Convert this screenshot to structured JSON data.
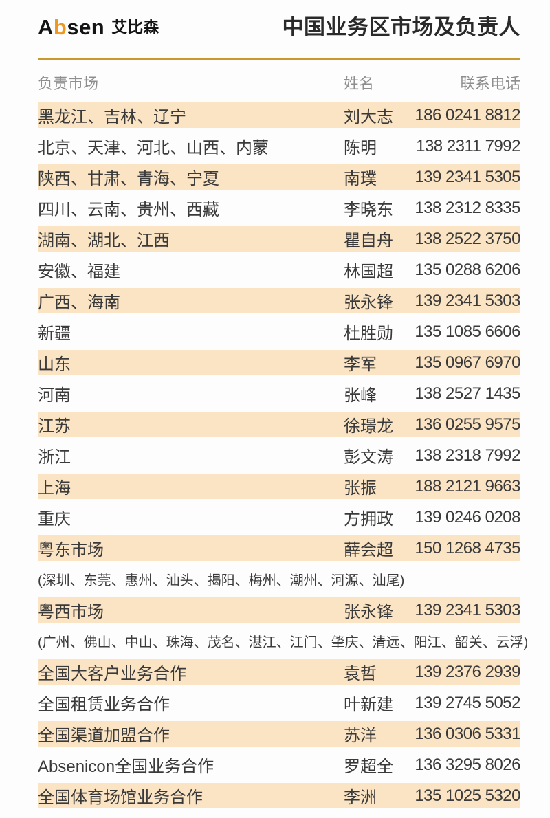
{
  "header": {
    "logo_en_a": "A",
    "logo_en_b": "b",
    "logo_en_rest": "sen",
    "logo_cn": "艾比森",
    "title": "中国业务区市场及负责人"
  },
  "columns": {
    "market": "负责市场",
    "name": "姓名",
    "phone": "联系电话"
  },
  "colors": {
    "accent": "#c9992f",
    "row_highlight": "#fae4c4",
    "logo_orange": "#ee9822",
    "text_dark": "#3a3a3a",
    "header_gray": "#8e8e8e"
  },
  "rows": [
    {
      "market": "黑龙江、吉林、辽宁",
      "name": "刘大志",
      "phone": "186 0241 8812",
      "highlight": true
    },
    {
      "market": "北京、天津、河北、山西、内蒙",
      "name": "陈明",
      "phone": "138 2311 7992",
      "highlight": false
    },
    {
      "market": "陕西、甘肃、青海、宁夏",
      "name": "南璞",
      "phone": "139 2341 5305",
      "highlight": true
    },
    {
      "market": "四川、云南、贵州、西藏",
      "name": "李晓东",
      "phone": "138 2312 8335",
      "highlight": false
    },
    {
      "market": "湖南、湖北、江西",
      "name": "瞿自舟",
      "phone": "138 2522 3750",
      "highlight": true
    },
    {
      "market": "安徽、福建",
      "name": "林国超",
      "phone": "135 0288 6206",
      "highlight": false
    },
    {
      "market": "广西、海南",
      "name": "张永锋",
      "phone": "139 2341 5303",
      "highlight": true
    },
    {
      "market": "新疆",
      "name": "杜胜勋",
      "phone": "135 1085 6606",
      "highlight": false
    },
    {
      "market": "山东",
      "name": "李军",
      "phone": "135 0967 6970",
      "highlight": true
    },
    {
      "market": "河南",
      "name": "张峰",
      "phone": "138 2527 1435",
      "highlight": false
    },
    {
      "market": "江苏",
      "name": "徐璟龙",
      "phone": "136 0255 9575",
      "highlight": true
    },
    {
      "market": "浙江",
      "name": "彭文涛",
      "phone": "138 2318 7992",
      "highlight": false
    },
    {
      "market": "上海",
      "name": "张振",
      "phone": "188 2121 9663",
      "highlight": true
    },
    {
      "market": "重庆",
      "name": "方拥政",
      "phone": "139 0246 0208",
      "highlight": false
    },
    {
      "market": "粤东市场",
      "name": "薛会超",
      "phone": "150 1268 4735",
      "highlight": true
    },
    {
      "type": "note",
      "text": "(深圳、东莞、惠州、汕头、揭阳、梅州、潮州、河源、汕尾)"
    },
    {
      "market": "粤西市场",
      "name": "张永锋",
      "phone": "139 2341 5303",
      "highlight": true
    },
    {
      "type": "note",
      "text": "(广州、佛山、中山、珠海、茂名、湛江、江门、肇庆、清远、阳江、韶关、云浮)"
    },
    {
      "market": "全国大客户业务合作",
      "name": "袁哲",
      "phone": "139 2376 2939",
      "highlight": true
    },
    {
      "market": "全国租赁业务合作",
      "name": "叶新建",
      "phone": "139 2745 5052",
      "highlight": false
    },
    {
      "market": "全国渠道加盟合作",
      "name": "苏洋",
      "phone": "136 0306 5331",
      "highlight": true
    },
    {
      "market": "Absenicon全国业务合作",
      "name": "罗超全",
      "phone": "136 3295 8026",
      "highlight": false
    },
    {
      "market": "全国体育场馆业务合作",
      "name": "李洲",
      "phone": "135 1025 5320",
      "highlight": true
    }
  ]
}
